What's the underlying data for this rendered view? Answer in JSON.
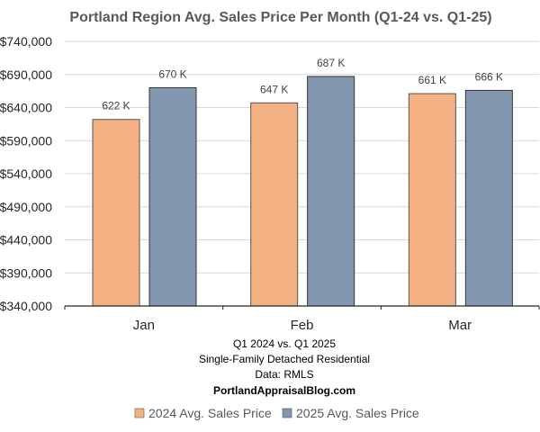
{
  "chart_data": {
    "type": "bar",
    "title": "Portland Region Avg. Sales Price Per Month (Q1-24 vs. Q1-25)",
    "categories": [
      "Jan",
      "Feb",
      "Mar"
    ],
    "series": [
      {
        "name": "2024 Avg. Sales Price",
        "color": "#F4B183",
        "values": [
          622000,
          647000,
          661000
        ],
        "labels": [
          "622 K",
          "647 K",
          "661 K"
        ]
      },
      {
        "name": "2025 Avg. Sales Price",
        "color": "#8497B0",
        "values": [
          670000,
          687000,
          666000
        ],
        "labels": [
          "670 K",
          "687 K",
          "666 K"
        ]
      }
    ],
    "ylim": [
      340000,
      740000
    ],
    "yticks": [
      340000,
      390000,
      440000,
      490000,
      540000,
      590000,
      640000,
      690000,
      740000
    ],
    "ytick_labels": [
      "$340,000",
      "$390,000",
      "$440,000",
      "$490,000",
      "$540,000",
      "$590,000",
      "$640,000",
      "$690,000",
      "$740,000"
    ],
    "xlabel": "",
    "ylabel": "",
    "grid": true,
    "legend_position": "bottom",
    "annotations": [
      "Q1 2024 vs. Q1 2025",
      "Single-Family Detached Residential",
      "Data: RMLS",
      "PortlandAppraisalBlog.com"
    ]
  }
}
